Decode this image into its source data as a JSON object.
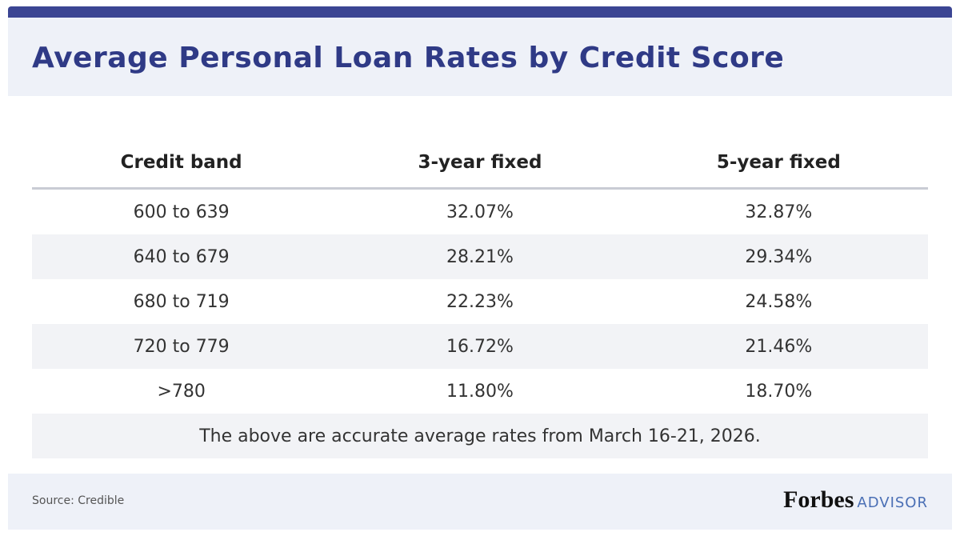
{
  "header": {
    "title": "Average Personal Loan Rates by Credit Score"
  },
  "table": {
    "columns": [
      "Credit band",
      "3-year fixed",
      "5-year fixed"
    ],
    "rows": [
      [
        "600 to 639",
        "32.07%",
        "32.87%"
      ],
      [
        "640 to 679",
        "28.21%",
        "29.34%"
      ],
      [
        "680 to 719",
        "22.23%",
        "24.58%"
      ],
      [
        "720 to 779",
        "16.72%",
        "21.46%"
      ],
      [
        ">780",
        "11.80%",
        "18.70%"
      ]
    ],
    "note": "The above are accurate average rates from March 16-21, 2026."
  },
  "footer": {
    "source": "Source: Credible",
    "brand": "Forbes",
    "brand_suffix": "ADVISOR"
  }
}
